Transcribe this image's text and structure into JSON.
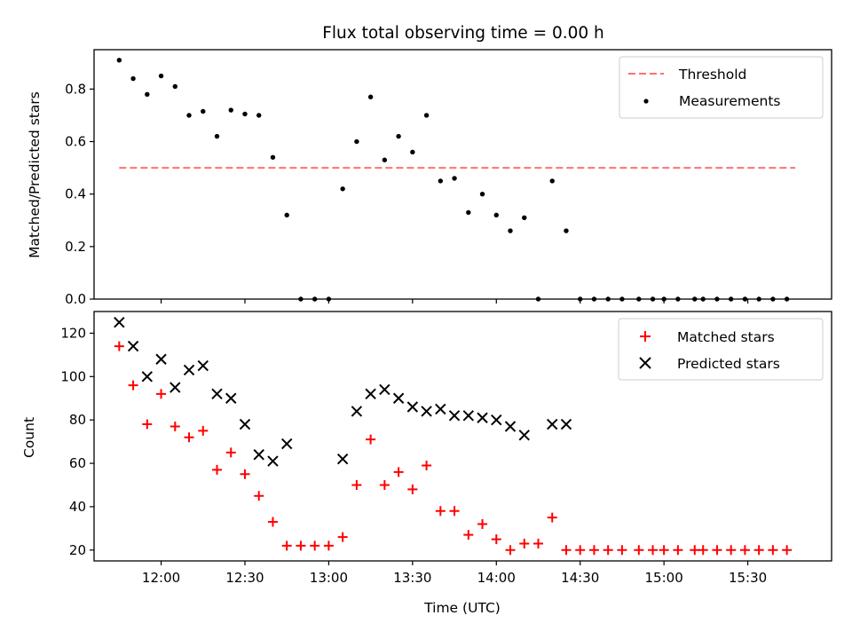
{
  "chart_data": [
    {
      "type": "scatter",
      "title": "Flux total observing time = 0.00 h",
      "ylabel": "Matched/Predicted stars",
      "xlabel": "",
      "ylim": [
        0,
        0.95
      ],
      "yticks": [
        "0.0",
        "0.2",
        "0.4",
        "0.6",
        "0.8"
      ],
      "legend_position": "top-right",
      "threshold": {
        "name": "Threshold",
        "y": 0.5,
        "x_range": [
          "11:45",
          "15:47"
        ],
        "color": "#ff7070",
        "style": "dashed"
      },
      "series": [
        {
          "name": "Measurements",
          "color": "#000000",
          "marker": "dot",
          "x": [
            "11:45",
            "11:50",
            "11:55",
            "12:00",
            "12:05",
            "12:10",
            "12:15",
            "12:20",
            "12:25",
            "12:30",
            "12:35",
            "12:40",
            "12:45",
            "12:50",
            "12:55",
            "13:00",
            "13:05",
            "13:10",
            "13:15",
            "13:20",
            "13:25",
            "13:30",
            "13:35",
            "13:40",
            "13:45",
            "13:50",
            "13:55",
            "14:00",
            "14:05",
            "14:10",
            "14:15",
            "14:20",
            "14:25",
            "14:30",
            "14:35",
            "14:40",
            "14:45",
            "14:51",
            "14:56",
            "15:00",
            "15:05",
            "15:11",
            "15:14",
            "15:19",
            "15:24",
            "15:29",
            "15:34",
            "15:39",
            "15:44"
          ],
          "y": [
            0.91,
            0.84,
            0.78,
            0.85,
            0.81,
            0.7,
            0.715,
            0.62,
            0.72,
            0.705,
            0.7,
            0.54,
            0.32,
            0,
            0,
            0,
            0.42,
            0.6,
            0.77,
            0.53,
            0.62,
            0.56,
            0.7,
            0.45,
            0.46,
            0.33,
            0.4,
            0.32,
            0.26,
            0.31,
            0,
            0.45,
            0.26,
            0,
            0,
            0,
            0,
            0,
            0,
            0,
            0,
            0,
            0,
            0,
            0,
            0,
            0,
            0,
            0
          ]
        }
      ]
    },
    {
      "type": "scatter",
      "title": "",
      "ylabel": "Count",
      "xlabel": "Time (UTC)",
      "ylim": [
        15,
        130
      ],
      "yticks": [
        "20",
        "40",
        "60",
        "80",
        "100",
        "120"
      ],
      "xlim": [
        "11:36",
        "16:00"
      ],
      "xticks": [
        "12:00",
        "12:30",
        "13:00",
        "13:30",
        "14:00",
        "14:30",
        "15:00",
        "15:30"
      ],
      "legend_position": "top-right",
      "series": [
        {
          "name": "Matched stars",
          "color": "#ff0000",
          "marker": "plus",
          "x": [
            "11:45",
            "11:50",
            "11:55",
            "12:00",
            "12:05",
            "12:10",
            "12:15",
            "12:20",
            "12:25",
            "12:30",
            "12:35",
            "12:40",
            "12:45",
            "12:50",
            "12:55",
            "13:00",
            "13:05",
            "13:10",
            "13:15",
            "13:20",
            "13:25",
            "13:30",
            "13:35",
            "13:40",
            "13:45",
            "13:50",
            "13:55",
            "14:00",
            "14:05",
            "14:10",
            "14:15",
            "14:20",
            "14:25",
            "14:30",
            "14:35",
            "14:40",
            "14:45",
            "14:51",
            "14:56",
            "15:00",
            "15:05",
            "15:11",
            "15:14",
            "15:19",
            "15:24",
            "15:29",
            "15:34",
            "15:39",
            "15:44"
          ],
          "y": [
            114,
            96,
            78,
            92,
            77,
            72,
            75,
            57,
            65,
            55,
            45,
            33,
            22,
            22,
            22,
            22,
            26,
            50,
            71,
            50,
            56,
            48,
            59,
            38,
            38,
            27,
            32,
            25,
            20,
            23,
            23,
            35,
            20,
            20,
            20,
            20,
            20,
            20,
            20,
            20,
            20,
            20,
            20,
            20,
            20,
            20,
            20,
            20,
            20
          ]
        },
        {
          "name": "Predicted stars",
          "color": "#000000",
          "marker": "x",
          "x": [
            "11:45",
            "11:50",
            "11:55",
            "12:00",
            "12:05",
            "12:10",
            "12:15",
            "12:20",
            "12:25",
            "12:30",
            "12:35",
            "12:40",
            "12:45",
            "13:05",
            "13:10",
            "13:15",
            "13:20",
            "13:25",
            "13:30",
            "13:35",
            "13:40",
            "13:45",
            "13:50",
            "13:55",
            "14:00",
            "14:05",
            "14:10",
            "14:20",
            "14:25"
          ],
          "y": [
            125,
            114,
            100,
            108,
            95,
            103,
            105,
            92,
            90,
            78,
            64,
            61,
            69,
            62,
            84,
            92,
            94,
            90,
            86,
            84,
            85,
            82,
            82,
            81,
            80,
            77,
            73,
            78,
            78
          ]
        }
      ]
    }
  ]
}
